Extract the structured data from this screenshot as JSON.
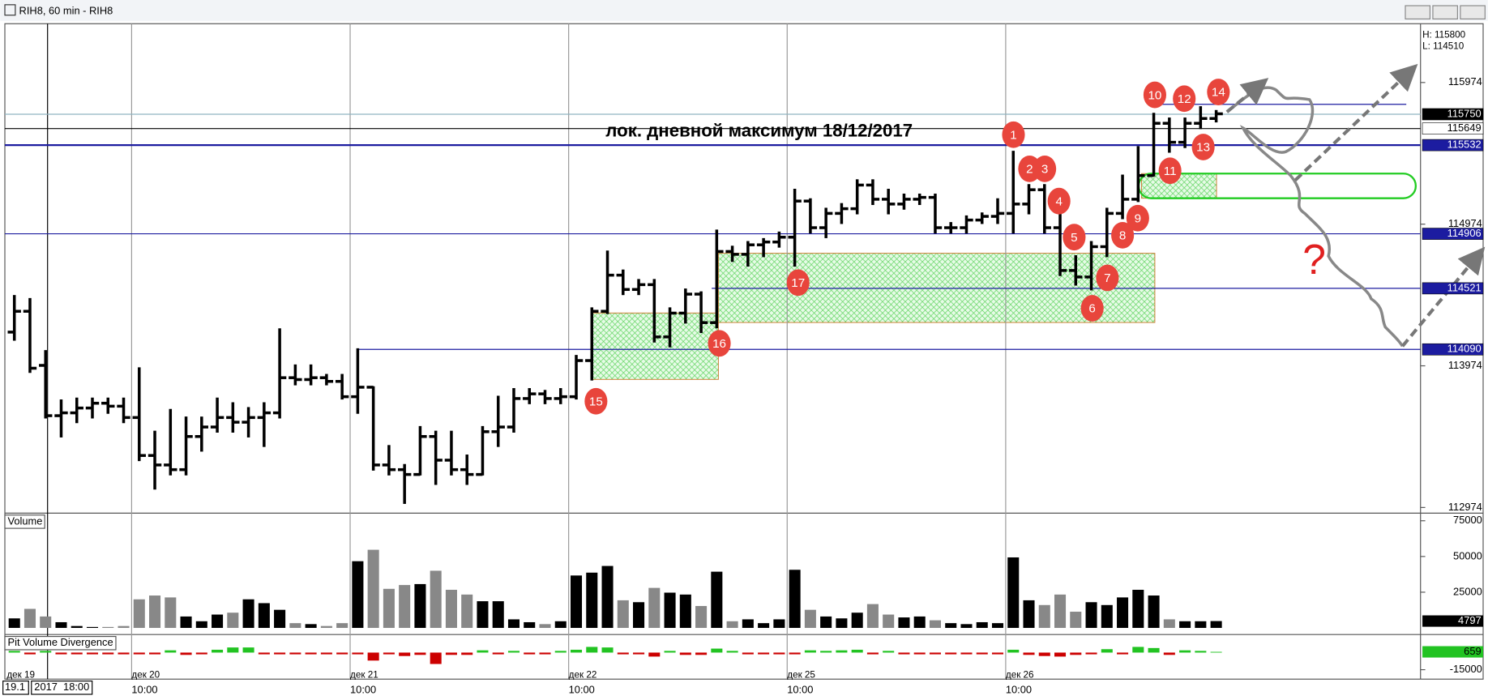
{
  "window": {
    "title": "RIH8, 60 min - RIH8"
  },
  "cursor": {
    "date": "19.1",
    "time": "2017  18:00"
  },
  "chart_data": [
    {
      "type": "ohlc",
      "high_label": "H: 115800",
      "low_label": "L: 114510",
      "ylim": [
        112934,
        116389
      ],
      "yticks": [
        112974,
        113974,
        114974,
        115974
      ],
      "up_color": "#000000",
      "down_color": "#888888",
      "categories": [
        "дек 19",
        null,
        null,
        null,
        null,
        null,
        null,
        null,
        "дек 20",
        null,
        null,
        null,
        null,
        null,
        null,
        null,
        null,
        null,
        null,
        null,
        null,
        null,
        "дек 21",
        null,
        null,
        null,
        null,
        null,
        null,
        null,
        null,
        null,
        null,
        null,
        null,
        null,
        "дек 22",
        null,
        null,
        null,
        null,
        null,
        null,
        null,
        null,
        null,
        null,
        null,
        null,
        null,
        "дек 25",
        null,
        null,
        null,
        null,
        null,
        null,
        null,
        null,
        null,
        null,
        null,
        null,
        null,
        "дек 26",
        null,
        null,
        null,
        null,
        null,
        null,
        null,
        null,
        null,
        null,
        null,
        null,
        null
      ],
      "times": [
        null,
        null,
        null,
        null,
        null,
        null,
        null,
        null,
        "10:00",
        null,
        null,
        null,
        null,
        null,
        null,
        null,
        null,
        null,
        null,
        null,
        null,
        null,
        "10:00",
        null,
        null,
        null,
        null,
        null,
        null,
        null,
        null,
        null,
        null,
        null,
        null,
        null,
        "10:00",
        null,
        null,
        null,
        null,
        null,
        null,
        null,
        null,
        null,
        null,
        null,
        null,
        null,
        "10:00",
        null,
        null,
        null,
        null,
        null,
        null,
        null,
        null,
        null,
        null,
        null,
        null,
        null,
        "10:00",
        null,
        null,
        null,
        null,
        null,
        null,
        null,
        null,
        null,
        null,
        null,
        null,
        null
      ],
      "ohlc": [
        [
          114212,
          114467,
          114158,
          114359
        ],
        [
          114359,
          114446,
          113931,
          113957
        ],
        [
          113977,
          114078,
          113609,
          113622
        ],
        [
          113622,
          113730,
          113475,
          113642
        ],
        [
          113642,
          113743,
          113576,
          113676
        ],
        [
          113676,
          113743,
          113609,
          113710
        ],
        [
          113710,
          113743,
          113642,
          113689
        ],
        [
          113689,
          113743,
          113576,
          113609
        ],
        [
          113609,
          113957,
          113308,
          113341
        ],
        [
          113341,
          113509,
          113107,
          113274
        ],
        [
          113274,
          113663,
          113207,
          113241
        ],
        [
          113241,
          113609,
          113207,
          113475
        ],
        [
          113475,
          113609,
          113375,
          113542
        ],
        [
          113542,
          113743,
          113509,
          113609
        ],
        [
          113609,
          113710,
          113509,
          113576
        ],
        [
          113576,
          113676,
          113475,
          113609
        ],
        [
          113609,
          113710,
          113408,
          113642
        ],
        [
          113642,
          114232,
          113609,
          113890
        ],
        [
          113890,
          113977,
          113843,
          113877
        ],
        [
          113877,
          113977,
          113843,
          113890
        ],
        [
          113890,
          113910,
          113843,
          113864
        ],
        [
          113864,
          113910,
          113743,
          113756
        ],
        [
          113756,
          114091,
          113642,
          113823
        ],
        [
          113823,
          113823,
          113241,
          113274
        ],
        [
          113274,
          113408,
          113207,
          113241
        ],
        [
          113241,
          113274,
          113006,
          113207
        ],
        [
          113207,
          113542,
          113207,
          113475
        ],
        [
          113475,
          113509,
          113140,
          113308
        ],
        [
          113308,
          113509,
          113207,
          113241
        ],
        [
          113241,
          113341,
          113140,
          113207
        ],
        [
          113207,
          113542,
          113207,
          113509
        ],
        [
          113509,
          113756,
          113408,
          113542
        ],
        [
          113542,
          113810,
          113509,
          113743
        ],
        [
          113743,
          113810,
          113710,
          113776
        ],
        [
          113776,
          113797,
          113710,
          113743
        ],
        [
          113743,
          113810,
          113710,
          113756
        ],
        [
          113756,
          114044,
          113743,
          114011
        ],
        [
          114011,
          114380,
          113877,
          114359
        ],
        [
          114359,
          114781,
          114346,
          114614
        ],
        [
          114614,
          114647,
          114480,
          114513
        ],
        [
          114513,
          114580,
          114480,
          114547
        ],
        [
          114547,
          114580,
          114145,
          114178
        ],
        [
          114178,
          114380,
          114111,
          114346
        ],
        [
          114346,
          114513,
          114279,
          114480
        ],
        [
          114480,
          114493,
          114212,
          114279
        ],
        [
          114279,
          114929,
          114245,
          114781
        ],
        [
          114781,
          114815,
          114714,
          114761
        ],
        [
          114761,
          114848,
          114681,
          114828
        ],
        [
          114828,
          114869,
          114748,
          114848
        ],
        [
          114848,
          114915,
          114815,
          114882
        ],
        [
          114882,
          115217,
          114681,
          115137
        ],
        [
          115137,
          115150,
          114915,
          114949
        ],
        [
          114949,
          115083,
          114882,
          115050
        ],
        [
          115050,
          115116,
          114982,
          115083
        ],
        [
          115083,
          115284,
          115050,
          115250
        ],
        [
          115250,
          115284,
          115116,
          115150
        ],
        [
          115150,
          115217,
          115050,
          115116
        ],
        [
          115116,
          115183,
          115083,
          115150
        ],
        [
          115150,
          115183,
          115116,
          115163
        ],
        [
          115163,
          115183,
          114915,
          114949
        ],
        [
          114949,
          114982,
          114915,
          114949
        ],
        [
          114949,
          115029,
          114915,
          115003
        ],
        [
          115003,
          115050,
          114982,
          115029
        ],
        [
          115029,
          115150,
          114982,
          115050
        ],
        [
          115050,
          115485,
          114915,
          115116
        ],
        [
          115116,
          115250,
          115050,
          115217
        ],
        [
          115217,
          115250,
          114915,
          114949
        ],
        [
          114949,
          115050,
          114614,
          114647
        ],
        [
          114647,
          114748,
          114547,
          114601
        ],
        [
          114601,
          114848,
          114513,
          114815
        ],
        [
          114815,
          115083,
          114748,
          115050
        ],
        [
          115050,
          115317,
          115016,
          115150
        ],
        [
          115150,
          115518,
          115137,
          115317
        ],
        [
          115317,
          115753,
          115317,
          115686
        ],
        [
          115686,
          115720,
          115485,
          115552
        ],
        [
          115552,
          115720,
          115518,
          115686
        ],
        [
          115686,
          115800,
          115652,
          115720
        ],
        [
          115720,
          115773,
          115699,
          115753
        ]
      ],
      "levels": [
        {
          "value": 115750,
          "color": "#8fb3c0",
          "box_color": "#000000"
        },
        {
          "value": 115649,
          "color": "#000000",
          "box_color": "#ffffff"
        },
        {
          "value": 115532,
          "color": "#1c1ca0",
          "box_color": "#1c1ca0"
        },
        {
          "value": 114906,
          "color": "#1c1ca0",
          "box_color": "#1c1ca0"
        },
        {
          "value": 114521,
          "color": "#1c1ca0",
          "box_color": "#1c1ca0"
        },
        {
          "value": 114090,
          "color": "#1c1ca0",
          "box_color": "#1c1ca0"
        }
      ],
      "unlabeled_levels": [
        115820
      ],
      "annotations": {
        "title": "лок. дневной максимум 18/12/2017",
        "question": "?",
        "markers": [
          "1",
          "2",
          "3",
          "4",
          "5",
          "6",
          "7",
          "8",
          "9",
          "10",
          "11",
          "12",
          "13",
          "14",
          "15",
          "16",
          "17"
        ]
      }
    },
    {
      "type": "bar",
      "title": "Volume",
      "ylim": [
        0,
        79000
      ],
      "yticks": [
        25000,
        50000,
        75000
      ],
      "values": [
        6670,
        13340,
        8000,
        4000,
        1330,
        670,
        670,
        1330,
        20010,
        22680,
        21340,
        8000,
        4670,
        9340,
        10670,
        20010,
        17340,
        12670,
        3340,
        2670,
        1330,
        3340,
        46690,
        54690,
        27350,
        30020,
        30680,
        40020,
        26680,
        23350,
        18680,
        18680,
        6000,
        4000,
        2670,
        4670,
        36690,
        38690,
        43360,
        19340,
        18010,
        28010,
        24680,
        23350,
        15340,
        39350,
        4670,
        6000,
        3340,
        6000,
        40690,
        12670,
        8000,
        6670,
        10670,
        16680,
        9340,
        7340,
        8000,
        5340,
        3340,
        2670,
        4000,
        3340,
        49360,
        19340,
        16010,
        23350,
        11340,
        18010,
        16010,
        21340,
        26680,
        22680,
        6000,
        4670,
        4670,
        4797
      ]
    },
    {
      "type": "divergence",
      "title": "Pit Volume Divergence",
      "ylim": [
        -23300,
        15000
      ],
      "yticks": [
        -15000
      ],
      "pos_color": "#22c322",
      "neg_color": "#cc0000",
      "values": [
        1500,
        -1500,
        1500,
        -1500,
        -1500,
        -1500,
        -1500,
        -1500,
        -1500,
        -1500,
        2000,
        -2000,
        -1500,
        2500,
        4500,
        4500,
        -1500,
        -1500,
        -1500,
        -1500,
        -1500,
        -1500,
        -1500,
        -7000,
        -1500,
        -3000,
        -2000,
        -10000,
        -2000,
        -2000,
        2000,
        -1500,
        1500,
        -1500,
        -1500,
        1500,
        2500,
        5000,
        4500,
        -1500,
        -1500,
        -3500,
        1500,
        -2000,
        -2000,
        3500,
        1500,
        -1500,
        -1500,
        -1500,
        -1500,
        2000,
        1500,
        2000,
        2500,
        -1500,
        1500,
        -1500,
        -1500,
        -1500,
        -1500,
        -1500,
        -1500,
        -1500,
        2500,
        -2000,
        -3000,
        -3500,
        -2000,
        -1500,
        3000,
        -1500,
        5000,
        4000,
        -2000,
        2000,
        1500,
        659
      ]
    }
  ]
}
